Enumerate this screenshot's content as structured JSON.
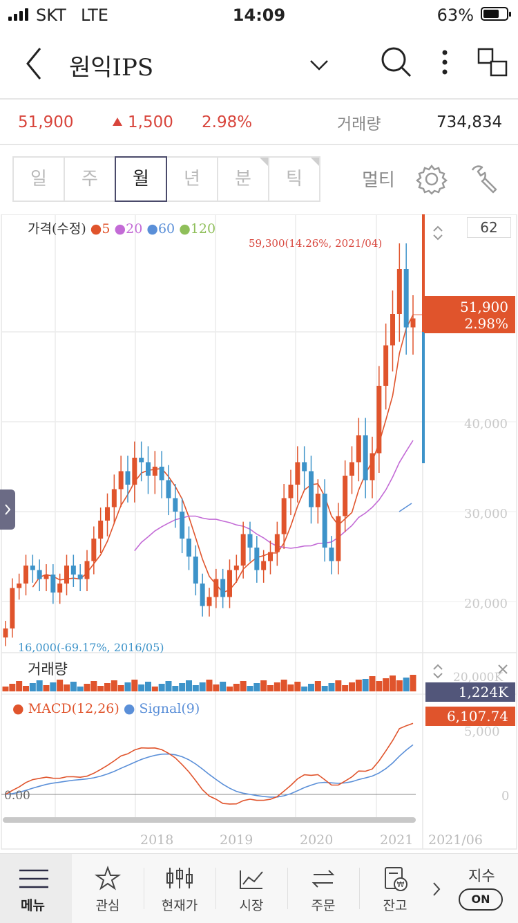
{
  "status_bar": {
    "carrier": "SKT",
    "network": "LTE",
    "time": "14:09",
    "battery": "63%"
  },
  "header": {
    "title": "원익IPS"
  },
  "quote": {
    "price": "51,900",
    "change": "1,500",
    "change_pct": "2.98%",
    "volume_label": "거래량",
    "volume": "734,834"
  },
  "tabs": [
    {
      "label": "일",
      "active": false
    },
    {
      "label": "주",
      "active": false
    },
    {
      "label": "월",
      "active": true
    },
    {
      "label": "년",
      "active": false
    },
    {
      "label": "분",
      "active": false
    },
    {
      "label": "틱",
      "active": false
    }
  ],
  "toolbar": {
    "multi_label": "멀티"
  },
  "chart": {
    "price_legend": {
      "title": "가격(수정)",
      "ma": [
        {
          "label": "5",
          "color": "#e0542c"
        },
        {
          "label": "20",
          "color": "#c36bd6"
        },
        {
          "label": "60",
          "color": "#5a8fd8"
        },
        {
          "label": "120",
          "color": "#8fbf5a"
        }
      ]
    },
    "count_box": "62",
    "max_annotation": "59,300(14.26%, 2021/04)",
    "min_annotation": "16,000(-69.17%, 2016/05)",
    "current_price_badge": {
      "price": "51,900",
      "pct": "2.98%"
    },
    "y_labels": [
      "40,000",
      "30,000",
      "20,000"
    ],
    "volume_legend": "거래량",
    "volume_axis_label": "20,000K",
    "volume_badge": "1,224K",
    "macd_legend": {
      "macd": "MACD(12,26)",
      "signal": "Signal(9)"
    },
    "macd_badge": "6,107.74",
    "macd_axis_labels": [
      "5,000",
      "0"
    ],
    "zero_label": "0.00",
    "x_labels": [
      "2018",
      "2019",
      "2020",
      "2021"
    ],
    "last_date": "2021/06",
    "colors": {
      "up": "#e0542c",
      "down": "#3d93c9",
      "ma5": "#e0542c",
      "ma20": "#c36bd6",
      "ma60": "#5a8fd8",
      "macd": "#e0542c",
      "signal": "#5a8fd8"
    }
  },
  "chart_data": {
    "type": "candlestick",
    "price_ylabels": [
      20000,
      30000,
      40000
    ],
    "x_ticks": [
      "2018",
      "2019",
      "2020",
      "2021"
    ],
    "last_close": 51900,
    "max": {
      "value": 59300,
      "date": "2021/04"
    },
    "min": {
      "value": 16000,
      "date": "2016/05"
    }
  },
  "bottom_nav": {
    "items": [
      {
        "label": "메뉴",
        "icon": "menu-icon"
      },
      {
        "label": "관심",
        "icon": "star-icon"
      },
      {
        "label": "현재가",
        "icon": "candlestick-icon"
      },
      {
        "label": "시장",
        "icon": "trend-icon"
      },
      {
        "label": "주문",
        "icon": "exchange-icon"
      },
      {
        "label": "잔고",
        "icon": "balance-icon"
      }
    ],
    "index_label": "지수",
    "toggle_label": "ON"
  }
}
